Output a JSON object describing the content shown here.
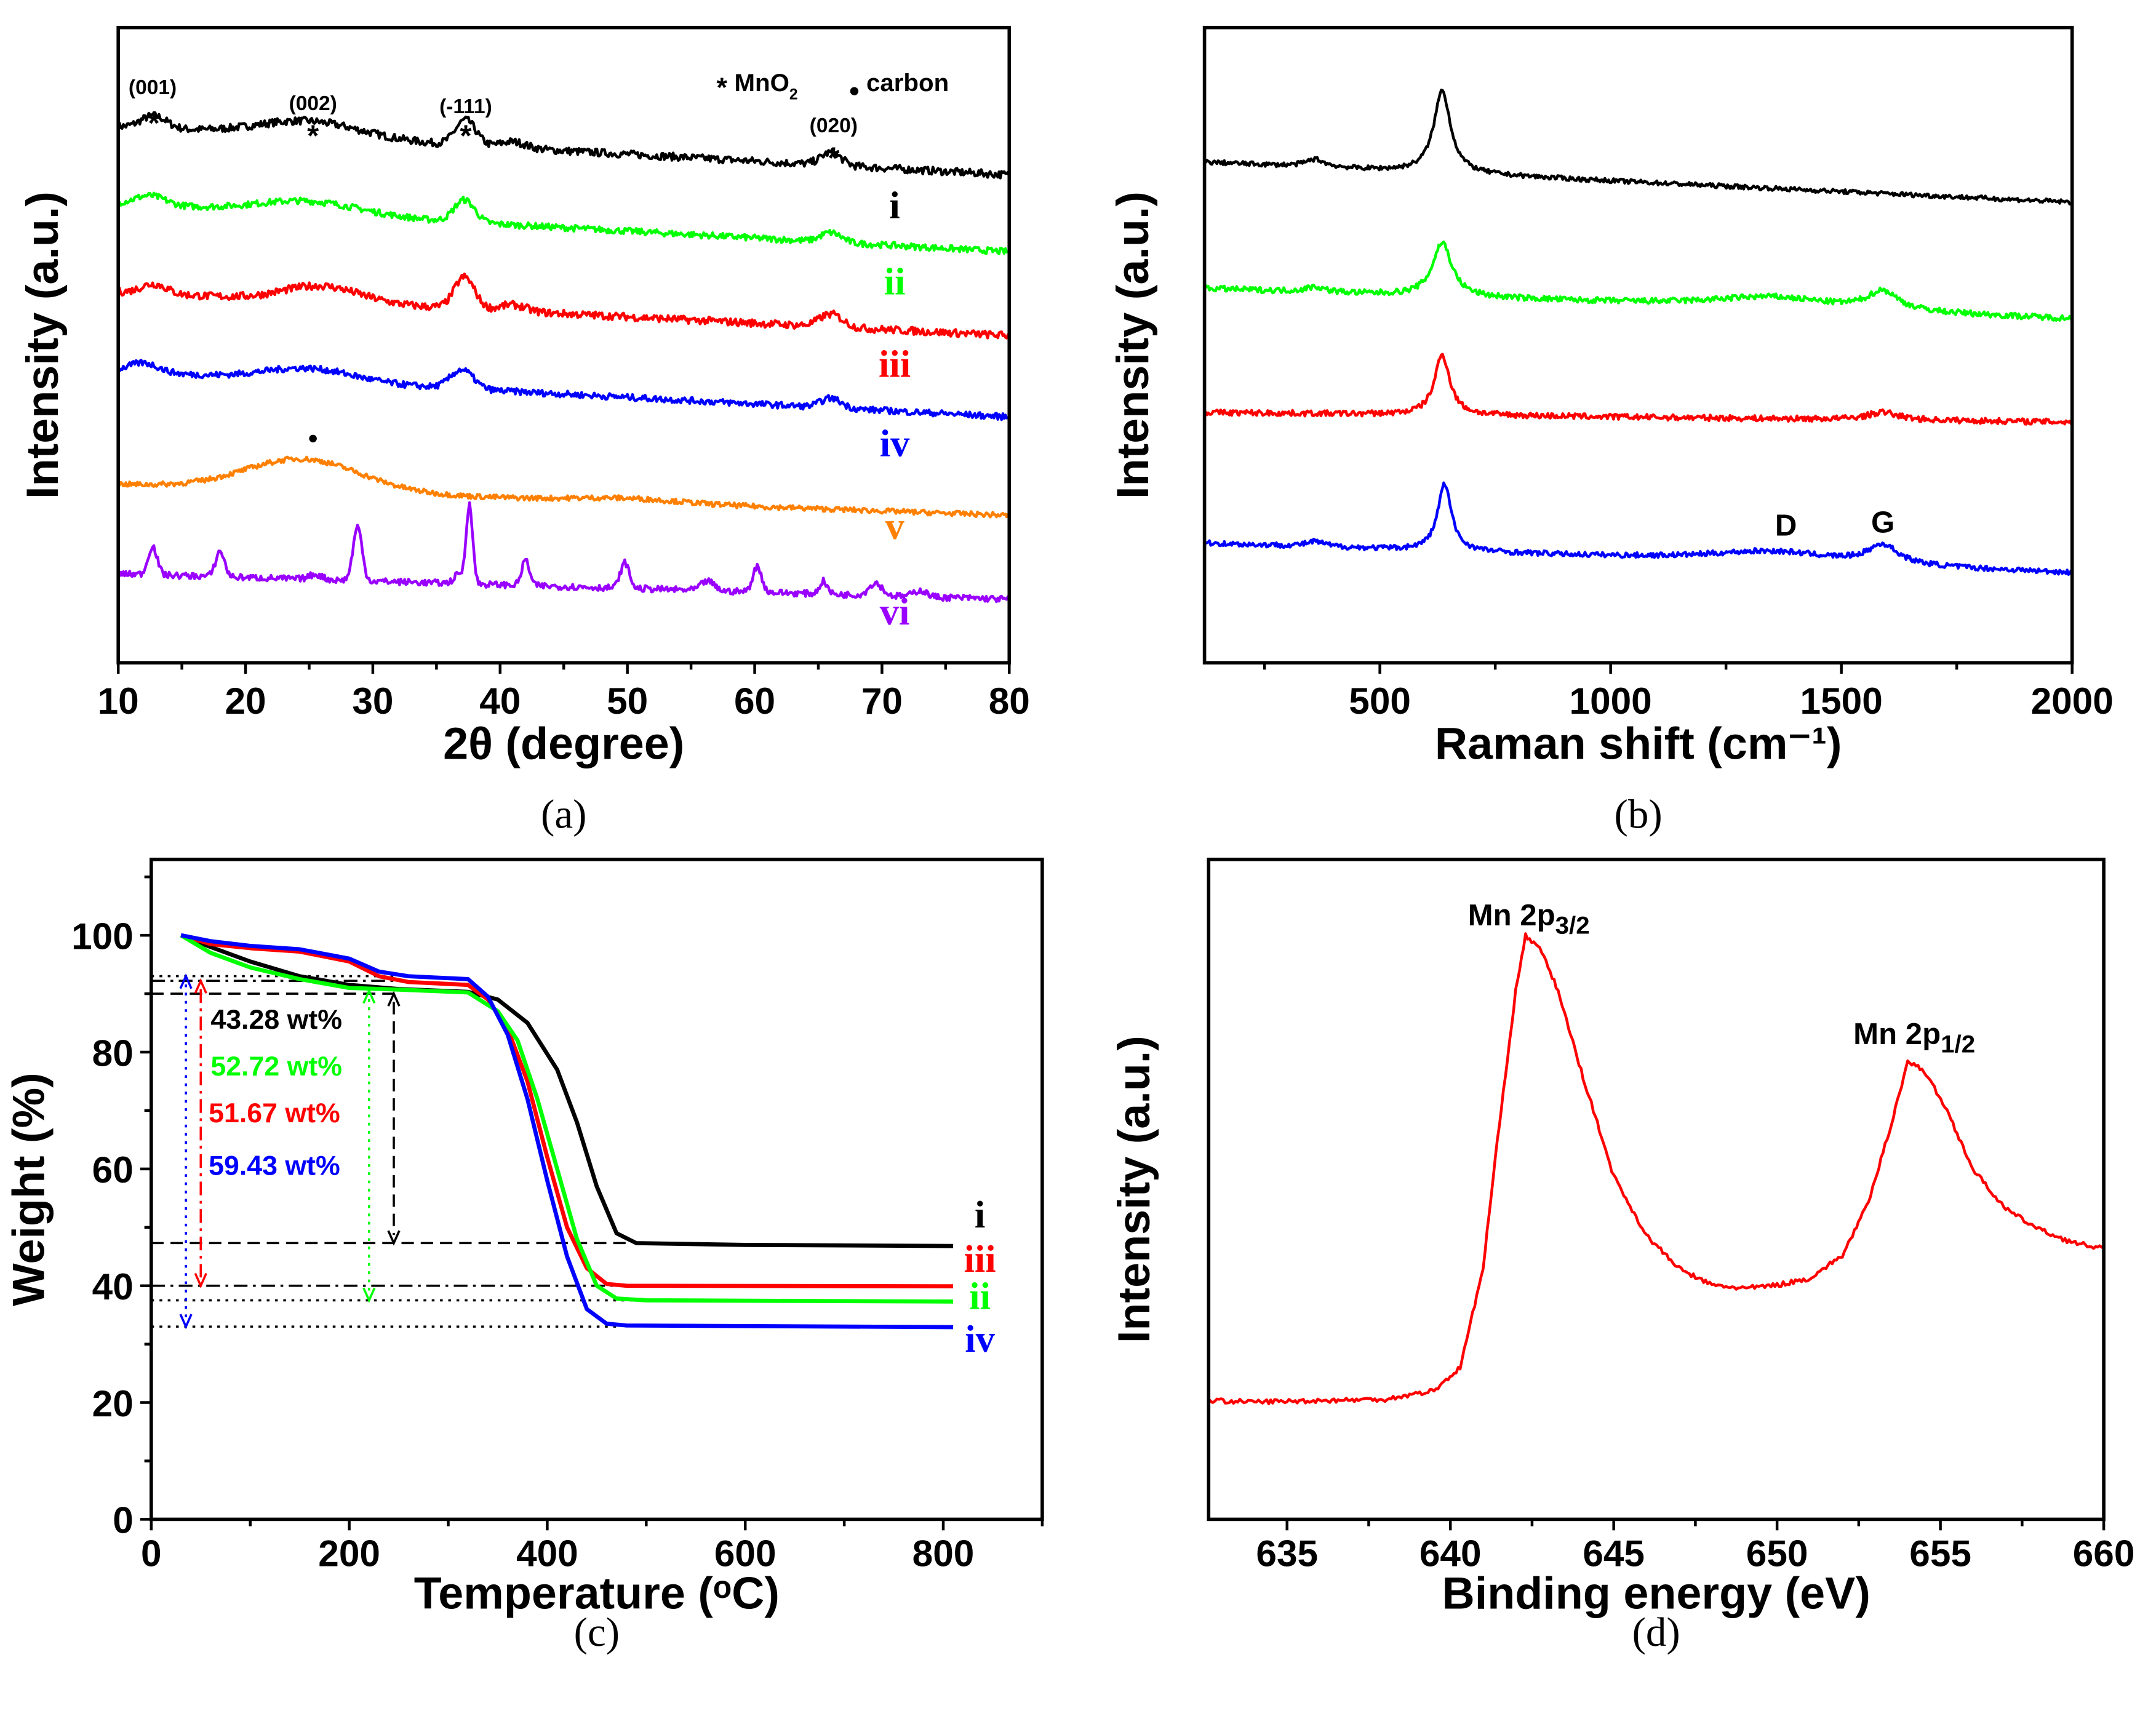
{
  "chart_data": [
    {
      "id": "a",
      "type": "line",
      "panel_label": "(a)",
      "xlabel": "2θ (degree)",
      "ylabel": "Intensity (a.u.)",
      "xlim": [
        10,
        80
      ],
      "ylim": [
        0,
        100
      ],
      "xticks": [
        10,
        20,
        30,
        40,
        50,
        60,
        70,
        80
      ],
      "xminor": 5,
      "yticks": [],
      "peak_shape": "gauss",
      "series": [
        {
          "name": "i",
          "color": "#000000",
          "start": 84.4,
          "end": 76.8,
          "noise": 0.6,
          "label_x": 71,
          "label_y": 70,
          "peaks": [
            [
              12.8,
              2,
              1
            ],
            [
              25,
              2.5,
              4
            ],
            [
              37.3,
              4,
              0.8
            ],
            [
              41,
              1,
              1
            ],
            [
              66,
              2,
              0.8
            ]
          ]
        },
        {
          "name": "ii",
          "color": "#00ff00",
          "start": 72.3,
          "end": 64.7,
          "noise": 0.5,
          "label_x": 71,
          "label_y": 58,
          "peaks": [
            [
              12.5,
              1.5,
              1.2
            ],
            [
              25,
              2,
              4
            ],
            [
              37.2,
              3.5,
              0.8
            ],
            [
              66,
              1.5,
              0.8
            ]
          ]
        },
        {
          "name": "iii",
          "color": "#ff0000",
          "start": 58.4,
          "end": 51.5,
          "noise": 0.6,
          "label_x": 71,
          "label_y": 45,
          "peaks": [
            [
              12.8,
              1.5,
              1
            ],
            [
              26,
              2.5,
              3
            ],
            [
              37.2,
              5,
              0.8
            ],
            [
              41,
              1,
              1
            ],
            [
              66,
              2,
              0.9
            ]
          ]
        },
        {
          "name": "iv",
          "color": "#0000ff",
          "start": 45.9,
          "end": 38.7,
          "noise": 0.5,
          "label_x": 71,
          "label_y": 32.5,
          "peaks": [
            [
              12,
              1.5,
              1.2
            ],
            [
              25,
              2,
              3.5
            ],
            [
              37,
              3,
              0.9
            ],
            [
              66,
              1.5,
              0.8
            ]
          ]
        },
        {
          "name": "v",
          "color": "#ff8000",
          "start": 28.1,
          "end": 23.2,
          "noise": 0.4,
          "label_x": 71,
          "label_y": 19.5,
          "peaks": [
            [
              24.5,
              5,
              4.5
            ],
            [
              50,
              0.6,
              4
            ]
          ]
        },
        {
          "name": "vi",
          "color": "#9900ff",
          "start": 14,
          "end": 10,
          "noise": 0.5,
          "label_x": 71,
          "label_y": 6,
          "peaks": [
            [
              12.7,
              4.5,
              0.35
            ],
            [
              18,
              4,
              0.35
            ],
            [
              25.5,
              0.8,
              0.5
            ],
            [
              28.8,
              8.5,
              0.35
            ],
            [
              36.8,
              1.5,
              0.4
            ],
            [
              37.6,
              12.5,
              0.25
            ],
            [
              42,
              4,
              0.3
            ],
            [
              49.8,
              4,
              0.35
            ],
            [
              56.3,
              1.5,
              0.5
            ],
            [
              60.2,
              4,
              0.35
            ],
            [
              65.4,
              2,
              0.3
            ],
            [
              69.5,
              2,
              0.5
            ],
            [
              73,
              1,
              0.5
            ]
          ]
        }
      ],
      "annotations": [
        {
          "text": "(001)",
          "x": 12.7,
          "y": 89.5,
          "size": "small"
        },
        {
          "text": "*",
          "x": 12.8,
          "y": 85.5,
          "size": "star"
        },
        {
          "text": "(002)",
          "x": 25.3,
          "y": 87,
          "size": "small"
        },
        {
          "text": "*",
          "x": 25.3,
          "y": 83.5,
          "size": "star"
        },
        {
          "text": "(-111)",
          "x": 37.3,
          "y": 86.5,
          "size": "small"
        },
        {
          "text": "*",
          "x": 37.3,
          "y": 83.5,
          "size": "star"
        },
        {
          "text": "(020)",
          "x": 66.2,
          "y": 83.5,
          "size": "small"
        },
        {
          "text": "*",
          "x": 66.2,
          "y": 80,
          "size": "star"
        }
      ],
      "legend": {
        "position": "top-right",
        "items": [
          {
            "marker": "*",
            "text": "MnO",
            "sub": "2"
          },
          {
            "marker": "●",
            "text": "carbon"
          }
        ]
      },
      "marker_dot": {
        "x": 25.3,
        "y": 34.5,
        "text": "●"
      }
    },
    {
      "id": "b",
      "type": "line",
      "panel_label": "(b)",
      "xlabel": "Raman shift (cm⁻¹)",
      "ylabel": "Intensity (a.u.)",
      "xlim": [
        120,
        2000
      ],
      "ylim": [
        0,
        100
      ],
      "xticks": [
        500,
        1000,
        1500,
        2000
      ],
      "xminor": 250,
      "yticks": [],
      "peak_shape": "lorentz",
      "series": [
        {
          "name": "black",
          "color": "#000000",
          "start": 78.8,
          "end": 72.5,
          "noise": 0.35,
          "peaks": [
            [
              635,
              13,
              22
            ],
            [
              360,
              1.2,
              25
            ]
          ]
        },
        {
          "name": "green",
          "color": "#00ff00",
          "start": 58.9,
          "end": 54.1,
          "noise": 0.45,
          "peaks": [
            [
              635,
              8.5,
              25
            ],
            [
              360,
              0.8,
              25
            ],
            [
              1350,
              1.8,
              160
            ],
            [
              1590,
              3,
              40
            ]
          ]
        },
        {
          "name": "red",
          "color": "#ff0000",
          "start": 39.4,
          "end": 37.9,
          "noise": 0.45,
          "peaks": [
            [
              635,
              9.5,
              20
            ],
            [
              1590,
              1.2,
              40
            ]
          ]
        },
        {
          "name": "blue",
          "color": "#0000ff",
          "start": 18.8,
          "end": 14.1,
          "noise": 0.4,
          "peaks": [
            [
              640,
              10.5,
              18
            ],
            [
              360,
              0.8,
              25
            ],
            [
              1350,
              1.8,
              170
            ],
            [
              1590,
              3,
              40
            ]
          ]
        }
      ],
      "annotations": [
        {
          "text": "D",
          "x": 1380,
          "y": 20,
          "size": "mid"
        },
        {
          "text": "G",
          "x": 1590,
          "y": 20.5,
          "size": "mid"
        }
      ]
    },
    {
      "id": "c",
      "type": "line",
      "panel_label": "(c)",
      "xlabel": "Temperature (ᵒC)",
      "ylabel": "Weight (%)",
      "xlim": [
        0,
        900
      ],
      "ylim": [
        0,
        113
      ],
      "xticks": [
        0,
        200,
        400,
        600,
        800
      ],
      "xminor": 100,
      "yticks": [
        0,
        20,
        40,
        60,
        80,
        100
      ],
      "yminor": 10,
      "series": [
        {
          "name": "i",
          "color": "#000000",
          "label_x": 837,
          "label_y": 50,
          "points": [
            [
              30,
              100
            ],
            [
              60,
              98
            ],
            [
              100,
              95.5
            ],
            [
              150,
              93
            ],
            [
              200,
              91.5
            ],
            [
              250,
              90.8
            ],
            [
              320,
              90.3
            ],
            [
              350,
              89
            ],
            [
              380,
              85
            ],
            [
              410,
              77
            ],
            [
              430,
              68
            ],
            [
              450,
              57
            ],
            [
              470,
              49
            ],
            [
              490,
              47.3
            ],
            [
              600,
              47
            ],
            [
              810,
              46.8
            ]
          ]
        },
        {
          "name": "iii",
          "color": "#ff0000",
          "label_x": 837,
          "label_y": 42.4,
          "points": [
            [
              30,
              100
            ],
            [
              60,
              98.5
            ],
            [
              100,
              97.8
            ],
            [
              150,
              97.2
            ],
            [
              200,
              95.5
            ],
            [
              230,
              93
            ],
            [
              260,
              92
            ],
            [
              320,
              91.5
            ],
            [
              340,
              89
            ],
            [
              360,
              84
            ],
            [
              380,
              75
            ],
            [
              400,
              62
            ],
            [
              420,
              50
            ],
            [
              440,
              43
            ],
            [
              460,
              40.3
            ],
            [
              480,
              40
            ],
            [
              810,
              39.9
            ]
          ]
        },
        {
          "name": "ii",
          "color": "#00ff00",
          "label_x": 837,
          "label_y": 36,
          "points": [
            [
              30,
              100
            ],
            [
              60,
              97
            ],
            [
              100,
              94.5
            ],
            [
              150,
              92.5
            ],
            [
              200,
              91
            ],
            [
              250,
              90.7
            ],
            [
              320,
              90.2
            ],
            [
              350,
              87
            ],
            [
              370,
              82
            ],
            [
              390,
              72
            ],
            [
              410,
              60
            ],
            [
              430,
              48
            ],
            [
              450,
              40
            ],
            [
              470,
              37.8
            ],
            [
              500,
              37.5
            ],
            [
              810,
              37.3
            ]
          ]
        },
        {
          "name": "iv",
          "color": "#0000ff",
          "label_x": 837,
          "label_y": 28.7,
          "points": [
            [
              30,
              100
            ],
            [
              60,
              99
            ],
            [
              100,
              98.2
            ],
            [
              150,
              97.6
            ],
            [
              200,
              96
            ],
            [
              230,
              93.8
            ],
            [
              260,
              93
            ],
            [
              320,
              92.5
            ],
            [
              340,
              89.5
            ],
            [
              360,
              83
            ],
            [
              380,
              72
            ],
            [
              400,
              58
            ],
            [
              420,
              45
            ],
            [
              440,
              36
            ],
            [
              460,
              33.5
            ],
            [
              480,
              33.2
            ],
            [
              810,
              32.9
            ]
          ]
        }
      ],
      "ref_lines": [
        {
          "y": 93,
          "x0": 0,
          "x1": 250,
          "style": "dotted"
        },
        {
          "y": 92.2,
          "x0": 0,
          "x1": 250,
          "style": "dashdot"
        },
        {
          "y": 90,
          "x0": 0,
          "x1": 250,
          "style": "dashed"
        },
        {
          "y": 47.3,
          "x0": 0,
          "x1": 480,
          "style": "dashed"
        },
        {
          "y": 40,
          "x0": 0,
          "x1": 470,
          "style": "dashdot"
        },
        {
          "y": 37.5,
          "x0": 0,
          "x1": 500,
          "style": "dotted"
        },
        {
          "y": 33,
          "x0": 0,
          "x1": 470,
          "style": "dotted"
        }
      ],
      "arrows": [
        {
          "x": 35,
          "y0": 93,
          "y1": 33,
          "color": "#0000ff",
          "style": "dotted"
        },
        {
          "x": 50,
          "y0": 92.2,
          "y1": 40,
          "color": "#ff0000",
          "style": "dashdot"
        },
        {
          "x": 220,
          "y0": 90.5,
          "y1": 37.5,
          "color": "#00ff00",
          "style": "dotted"
        },
        {
          "x": 245,
          "y0": 90,
          "y1": 47.3,
          "color": "#000000",
          "style": "dashed"
        }
      ],
      "annotations": [
        {
          "text": "43.28 wt%",
          "x": 60,
          "y": 84,
          "color": "#000000",
          "size": "wt"
        },
        {
          "text": "52.72 wt%",
          "x": 60,
          "y": 76,
          "color": "#00ff00",
          "size": "wt"
        },
        {
          "text": "51.67 wt%",
          "x": 58,
          "y": 68,
          "color": "#ff0000",
          "size": "wt"
        },
        {
          "text": "59.43 wt%",
          "x": 58,
          "y": 59,
          "color": "#0000ff",
          "size": "wt"
        }
      ]
    },
    {
      "id": "d",
      "type": "line",
      "panel_label": "(d)",
      "xlabel": "Binding energy (eV)",
      "ylabel": "Intensity (a.u.)",
      "xlim": [
        632.6,
        660
      ],
      "ylim": [
        0,
        100
      ],
      "xticks": [
        635,
        640,
        645,
        650,
        655,
        660
      ],
      "xminor": 2.5,
      "yticks": [],
      "series": [
        {
          "name": "Mn 2p",
          "color": "#ff0000",
          "noise": 0.35,
          "points": [
            [
              632.6,
              18
            ],
            [
              634,
              17.8
            ],
            [
              636,
              18
            ],
            [
              638,
              18.2
            ],
            [
              639.5,
              19.5
            ],
            [
              640.3,
              23
            ],
            [
              641,
              38
            ],
            [
              641.5,
              60
            ],
            [
              642,
              80
            ],
            [
              642.3,
              88.5
            ],
            [
              642.8,
              86
            ],
            [
              643.3,
              80
            ],
            [
              644,
              68
            ],
            [
              645,
              52
            ],
            [
              646,
              43
            ],
            [
              647,
              38
            ],
            [
              648,
              35.5
            ],
            [
              649,
              35
            ],
            [
              650,
              35.5
            ],
            [
              651,
              36.5
            ],
            [
              652,
              40
            ],
            [
              652.8,
              48
            ],
            [
              653.5,
              60
            ],
            [
              654,
              69.4
            ],
            [
              654.5,
              68
            ],
            [
              655.2,
              62
            ],
            [
              656,
              53
            ],
            [
              657,
              47
            ],
            [
              658,
              44
            ],
            [
              659,
              42
            ],
            [
              660,
              41
            ]
          ]
        }
      ],
      "peak_labels": [
        {
          "text": "Mn 2p",
          "sub": "3/2",
          "x": 642.4,
          "y": 90
        },
        {
          "text": "Mn 2p",
          "sub": "1/2",
          "x": 654.2,
          "y": 72
        }
      ]
    }
  ]
}
